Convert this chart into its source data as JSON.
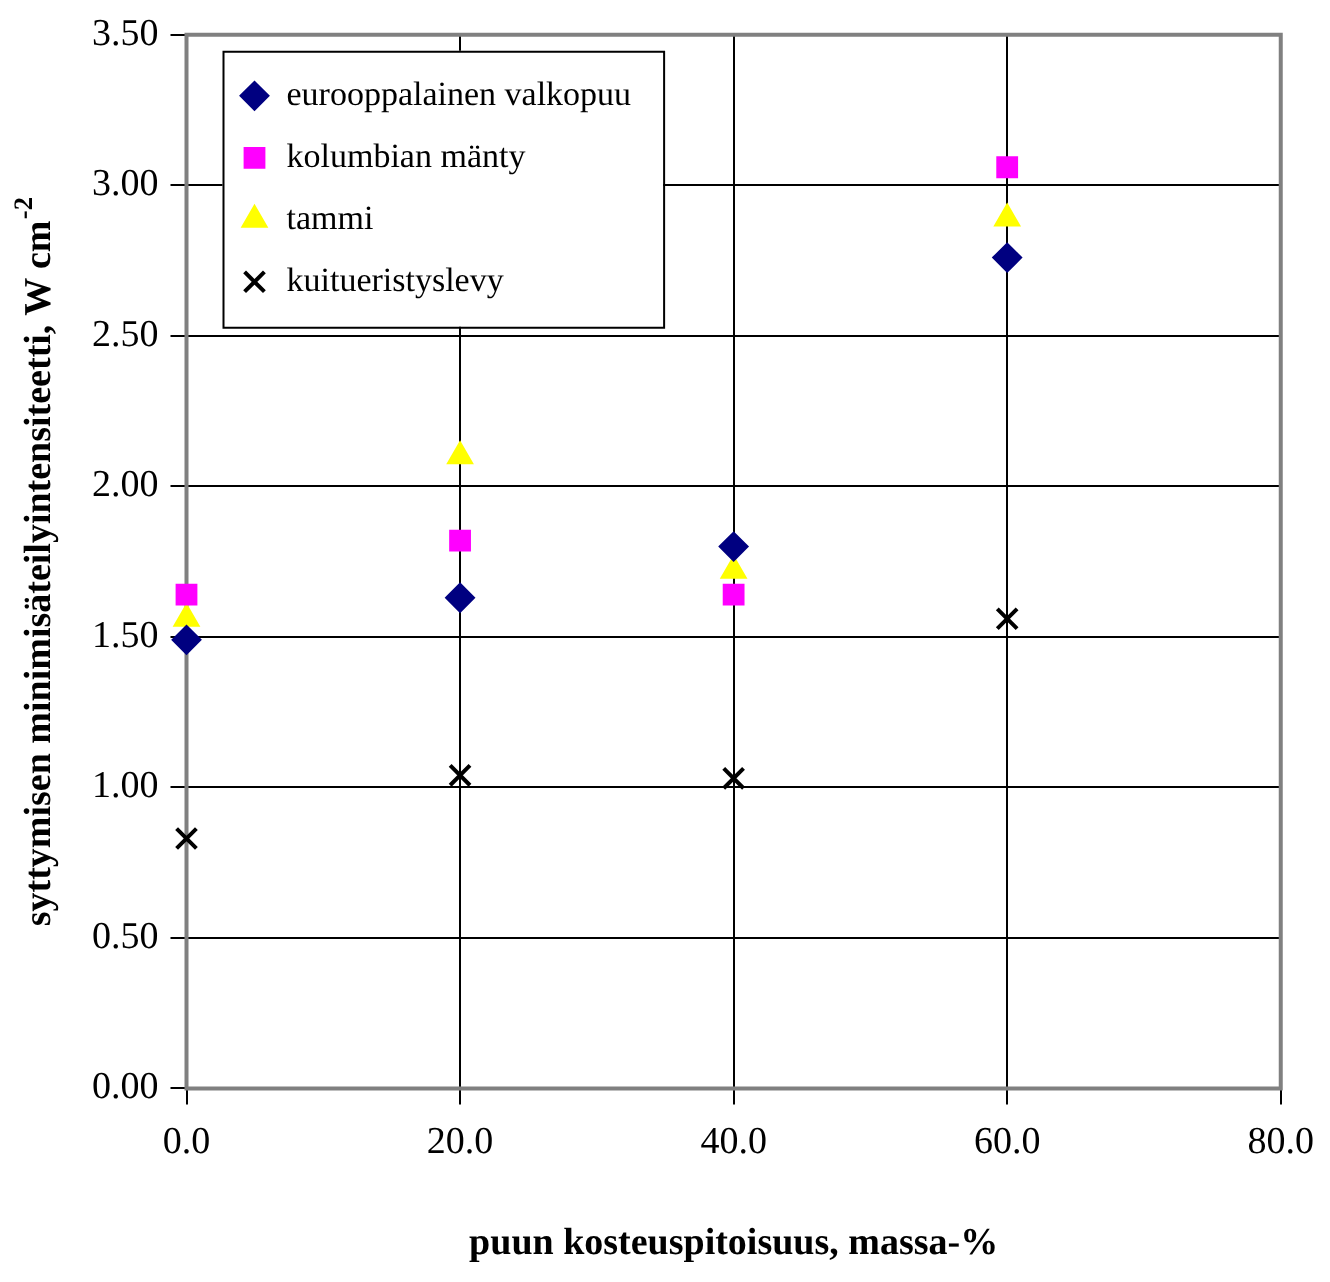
{
  "chart_data": {
    "type": "scatter",
    "xlabel": "puun kosteuspitoisuus, massa-%",
    "ylabel": "syttymisen minimisäteilyintensiteetti, W cm$^{-2}$",
    "x": [
      0,
      20,
      40,
      60
    ],
    "series": [
      {
        "name": "eurooppalainen valkopuu",
        "color": "#000080",
        "marker": "diamond",
        "values": [
          1.49,
          1.63,
          1.8,
          2.76
        ]
      },
      {
        "name": "kolumbian mänty",
        "color": "#ff00ff",
        "marker": "square",
        "values": [
          1.64,
          1.82,
          1.64,
          3.06
        ]
      },
      {
        "name": "tammi",
        "color": "#ffff00",
        "marker": "triangle",
        "values": [
          1.56,
          2.1,
          1.72,
          2.89
        ]
      },
      {
        "name": "kuitueristyslevy",
        "color": "#000000",
        "marker": "cross",
        "values": [
          0.83,
          1.04,
          1.03,
          1.56
        ]
      }
    ],
    "xlim": [
      0,
      80
    ],
    "xticks": [
      {
        "value": 0,
        "label": "0.0"
      },
      {
        "value": 20,
        "label": "20.0"
      },
      {
        "value": 40,
        "label": "40.0"
      },
      {
        "value": 60,
        "label": "60.0"
      },
      {
        "value": 80,
        "label": "80.0"
      }
    ],
    "ylim": [
      0,
      3.5
    ],
    "yticks": [
      {
        "value": 0,
        "label": "0.00"
      },
      {
        "value": 0.5,
        "label": "0.50"
      },
      {
        "value": 1,
        "label": "1.00"
      },
      {
        "value": 1.5,
        "label": "1.50"
      },
      {
        "value": 2,
        "label": "2.00"
      },
      {
        "value": 2.5,
        "label": "2.50"
      },
      {
        "value": 3,
        "label": "3.00"
      },
      {
        "value": 3.5,
        "label": "3.50"
      }
    ],
    "grid": true,
    "legend": "top left"
  }
}
